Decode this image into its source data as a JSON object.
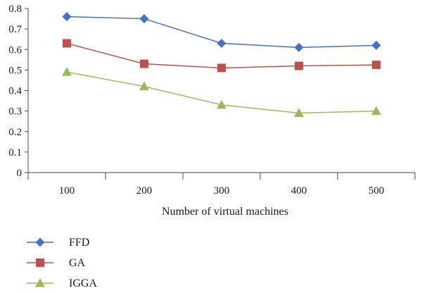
{
  "chart_data": {
    "type": "line",
    "title": "",
    "xlabel": "Number of virtual machines",
    "ylabel": "",
    "categories": [
      "100",
      "200",
      "300",
      "400",
      "500"
    ],
    "ylim": [
      0,
      0.8
    ],
    "yticks": [
      "0",
      "0.1",
      "0.2",
      "0.3",
      "0.4",
      "0.5",
      "0.6",
      "0.7",
      "0.8"
    ],
    "grid": false,
    "legend_position": "bottom-left",
    "series": [
      {
        "name": "FFD",
        "values": [
          0.76,
          0.75,
          0.63,
          0.61,
          0.62
        ],
        "color": "#4472C4",
        "marker": "diamond"
      },
      {
        "name": "GA",
        "values": [
          0.63,
          0.53,
          0.51,
          0.52,
          0.525
        ],
        "color": "#C0504D",
        "marker": "square"
      },
      {
        "name": "IGGA",
        "values": [
          0.49,
          0.42,
          0.33,
          0.29,
          0.3
        ],
        "color": "#9BBB59",
        "marker": "triangle"
      }
    ]
  }
}
